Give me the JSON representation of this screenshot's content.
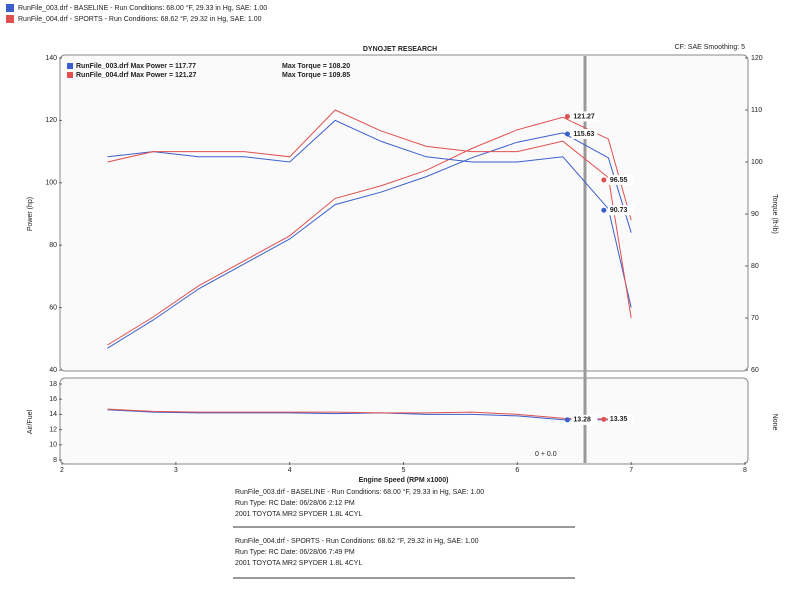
{
  "header": {
    "lines": [
      {
        "text": "RunFile_003.drf - BASELINE - Run Conditions: 68.00 °F, 29.33 in Hg, SAE: 1.00",
        "color": "#3a5fcd"
      },
      {
        "text": "RunFile_004.drf - SPORTS - Run Conditions: 68.62 °F, 29.32 in Hg, SAE: 1.00",
        "color": "#e05050"
      }
    ],
    "title": "DYNOJET RESEARCH",
    "settings": "CF: SAE   Smoothing: 5"
  },
  "chart_data": [
    {
      "type": "line",
      "ylabel": "Power (hp)",
      "y2label": "Torque (ft-lb)",
      "xlim": [
        2,
        8
      ],
      "ylim": [
        40,
        140
      ],
      "yticks": [
        40,
        60,
        80,
        100,
        120,
        140
      ],
      "y2lim": [
        60,
        120
      ],
      "y2ticks": [
        60,
        70,
        80,
        90,
        100,
        110,
        120
      ],
      "legend": [
        {
          "text": "RunFile_003.drf Max Power = 117.77",
          "torque": "Max Torque = 108.20",
          "color": "#3a5fcd"
        },
        {
          "text": "RunFile_004.drf Max Power = 121.27",
          "torque": "Max Torque = 109.85",
          "color": "#e05050"
        }
      ],
      "x": [
        2.4,
        2.8,
        3.2,
        3.6,
        4.0,
        4.4,
        4.8,
        5.2,
        5.6,
        6.0,
        6.4,
        6.8,
        7.0
      ],
      "series": [
        {
          "name": "Power 003",
          "color": "#3a5fcd",
          "values": [
            47,
            56,
            66,
            74,
            82,
            93,
            97,
            102,
            108,
            113,
            116,
            108,
            84
          ]
        },
        {
          "name": "Power 004",
          "color": "#e05050",
          "values": [
            48,
            57,
            67,
            75,
            83,
            95,
            99,
            104,
            111,
            117,
            121,
            114,
            88
          ]
        },
        {
          "name": "Torque 003",
          "color": "#3a5fcd",
          "axis": "y2",
          "values": [
            101,
            102,
            101,
            101,
            100,
            108,
            104,
            101,
            100,
            100,
            101,
            91,
            72
          ]
        },
        {
          "name": "Torque 004",
          "color": "#e05050",
          "axis": "y2",
          "values": [
            100,
            102,
            102,
            102,
            101,
            110,
            106,
            103,
            102,
            102,
            104,
            97,
            70
          ]
        }
      ],
      "markers": [
        {
          "x": 6.44,
          "value": 121.27,
          "label": "121.27",
          "color": "#e05050"
        },
        {
          "x": 6.44,
          "value": 115.63,
          "label": "115.63",
          "color": "#3a5fcd"
        },
        {
          "x": 6.76,
          "value": 96.55,
          "label": "96.55",
          "color": "#e05050",
          "axis": "y2"
        },
        {
          "x": 6.76,
          "value": 90.73,
          "label": "90.73",
          "color": "#3a5fcd",
          "axis": "y2"
        }
      ]
    },
    {
      "type": "line",
      "ylabel": "Air/Fuel",
      "y2label": "None",
      "xlabel": "Engine Speed (RPM x1000)",
      "xlim": [
        2,
        8
      ],
      "xticks": [
        2,
        3,
        4,
        5,
        6,
        7,
        8
      ],
      "ylim": [
        8,
        18
      ],
      "yticks": [
        8,
        10,
        12,
        14,
        16,
        18
      ],
      "x": [
        2.4,
        2.8,
        3.2,
        3.6,
        4.0,
        4.4,
        4.8,
        5.2,
        5.6,
        6.0,
        6.4,
        6.8,
        7.0
      ],
      "series": [
        {
          "name": "AFR 003",
          "color": "#3a5fcd",
          "values": [
            14.6,
            14.3,
            14.2,
            14.2,
            14.2,
            14.1,
            14.2,
            14.0,
            14.0,
            13.8,
            13.3,
            13.3,
            13.2
          ]
        },
        {
          "name": "AFR 004",
          "color": "#e05050",
          "values": [
            14.7,
            14.4,
            14.3,
            14.3,
            14.3,
            14.3,
            14.2,
            14.2,
            14.3,
            14.0,
            13.5,
            13.4,
            13.3
          ]
        }
      ],
      "markers": [
        {
          "x": 6.76,
          "value": 13.35,
          "label": "13.35",
          "color": "#e05050"
        },
        {
          "x": 6.44,
          "value": 13.28,
          "label": "13.28",
          "color": "#3a5fcd"
        }
      ],
      "note": "0 + 0.0"
    }
  ],
  "footer": {
    "blocks": [
      {
        "color": "#3a5fcd",
        "lines": [
          "RunFile_003.drf - BASELINE - Run Conditions: 68.00 °F, 29.33 in Hg, SAE: 1.00",
          "Run Type: RC  Date: 06/28/06 2:12 PM",
          "2001 TOYOTA MR2 SPYDER 1.8L 4CYL"
        ]
      },
      {
        "color": "#e05050",
        "lines": [
          "RunFile_004.drf - SPORTS - Run Conditions: 68.62 °F, 29.32 in Hg, SAE: 1.00",
          "Run Type: RC  Date: 06/28/06 7:49 PM",
          "2001 TOYOTA MR2 SPYDER 1.8L 4CYL"
        ]
      }
    ]
  }
}
